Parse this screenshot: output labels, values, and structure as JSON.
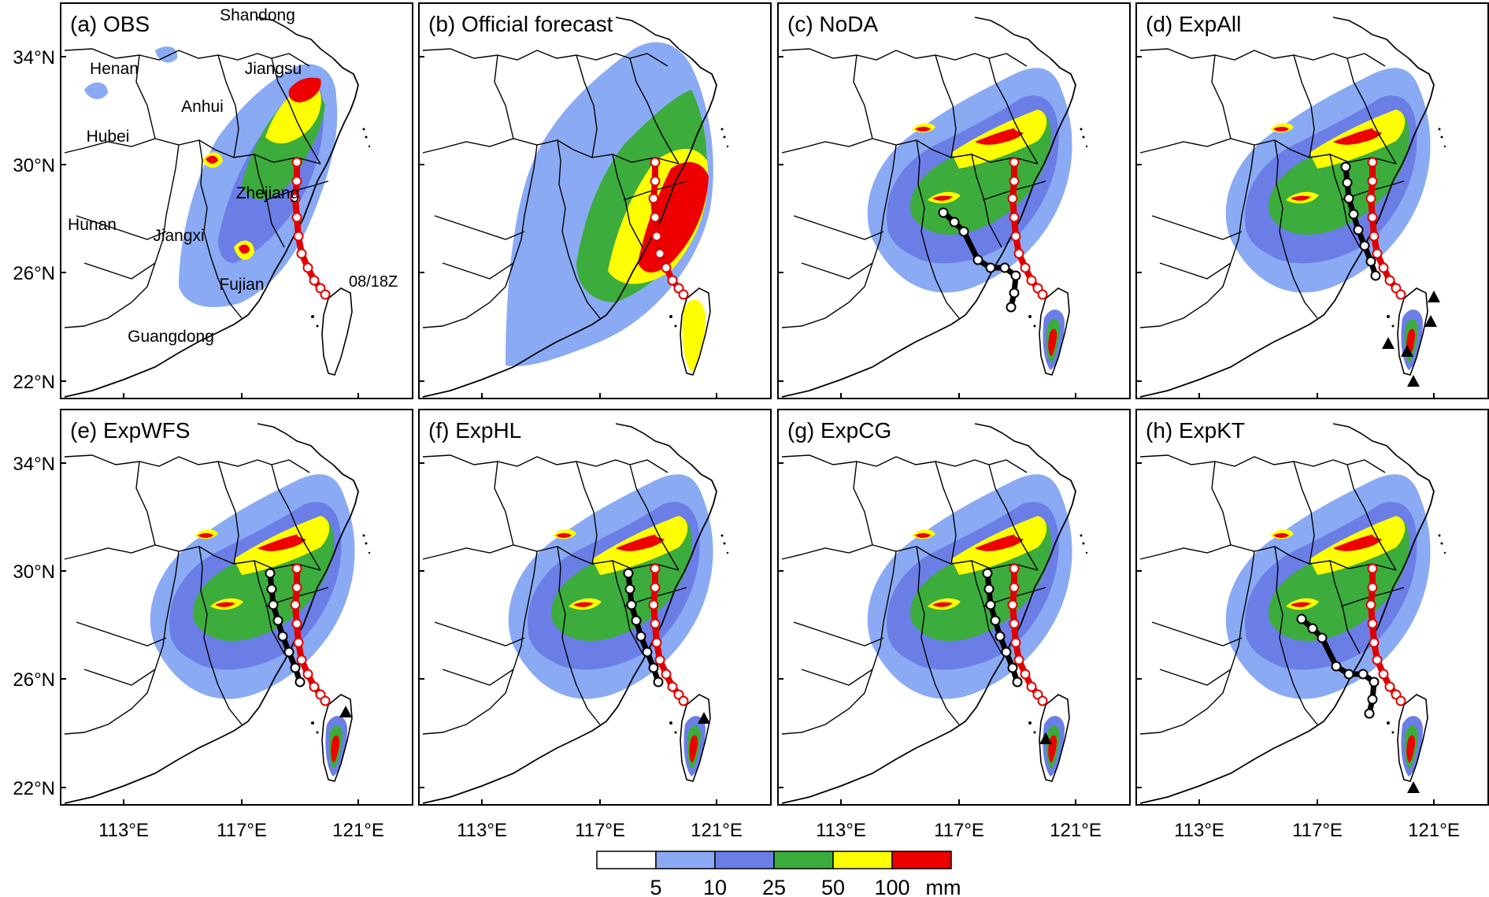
{
  "panels": [
    {
      "label": "(a) OBS",
      "type": "obs"
    },
    {
      "label": "(b) Official forecast",
      "type": "official"
    },
    {
      "label": "(c) NoDA",
      "type": "model",
      "black_track": "southwest"
    },
    {
      "label": "(d) ExpAll",
      "type": "model",
      "black_track": "north",
      "triangles": 5
    },
    {
      "label": "(e) ExpWFS",
      "type": "model",
      "black_track": "north",
      "triangles": 1
    },
    {
      "label": "(f) ExpHL",
      "type": "model",
      "black_track": "north",
      "triangles": 1
    },
    {
      "label": "(g) ExpCG",
      "type": "model",
      "black_track": "north",
      "triangles": 1
    },
    {
      "label": "(h) ExpKT",
      "type": "model",
      "black_track": "southwest",
      "triangles": 1
    }
  ],
  "lat_labels": [
    "34°N",
    "30°N",
    "26°N",
    "22°N"
  ],
  "lon_labels": [
    "113°E",
    "117°E",
    "121°E"
  ],
  "province_labels": [
    "Shandong",
    "Henan",
    "Jiangsu",
    "Anhui",
    "Hubei",
    "Zhejiang",
    "Hunan",
    "Jiangxi",
    "Fujian",
    "Guangdong"
  ],
  "track_time_label": "08/18Z",
  "colorbar": {
    "levels": [
      "5",
      "10",
      "25",
      "50",
      "100"
    ],
    "unit": "mm",
    "colors": [
      "#ffffff",
      "#8aaaf4",
      "#6b7ee6",
      "#3cac3c",
      "#ffff00",
      "#ee0000"
    ]
  }
}
